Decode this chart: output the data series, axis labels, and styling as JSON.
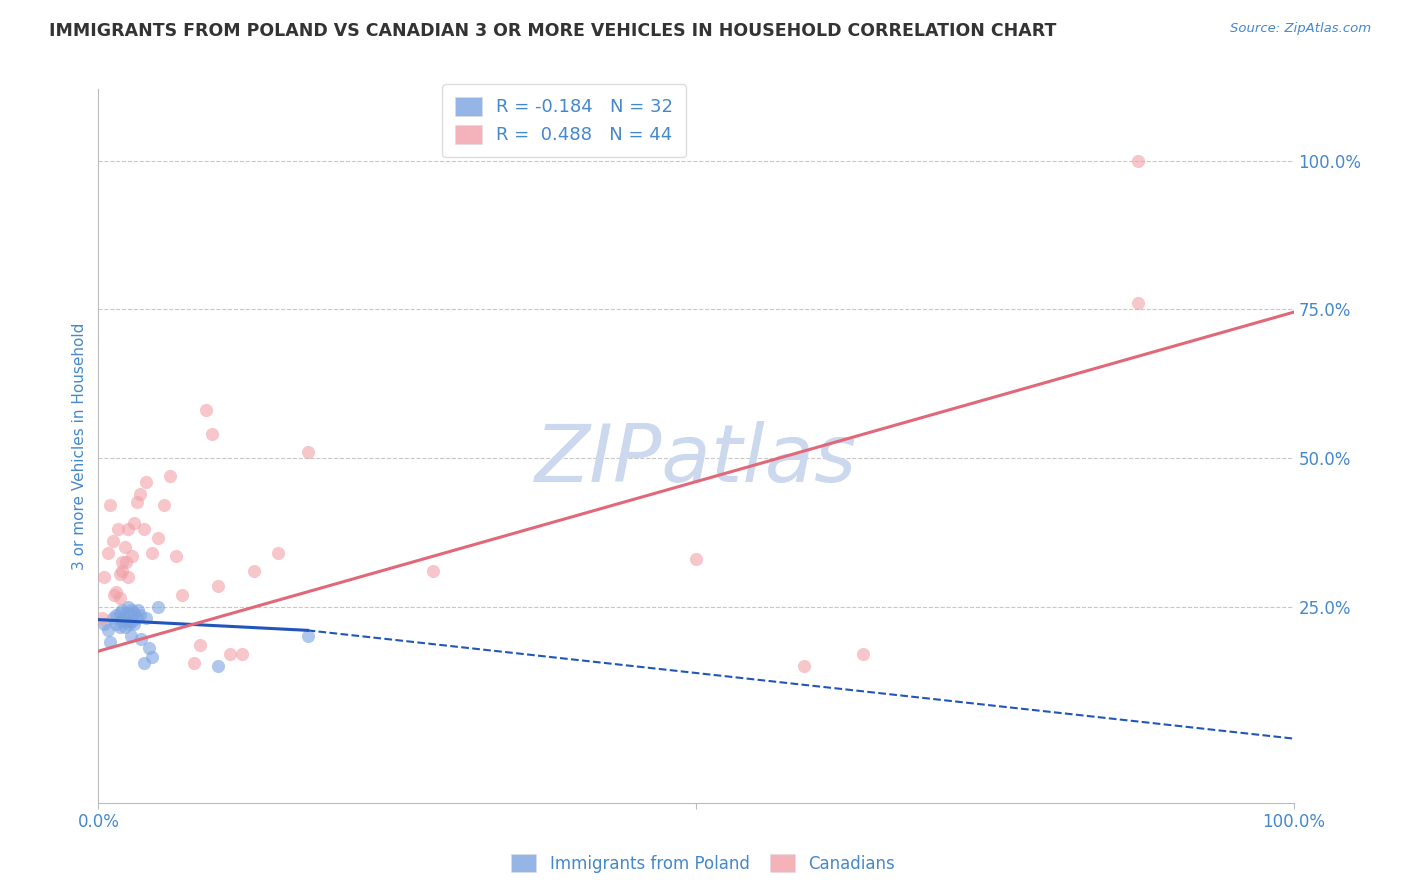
{
  "title": "IMMIGRANTS FROM POLAND VS CANADIAN 3 OR MORE VEHICLES IN HOUSEHOLD CORRELATION CHART",
  "source": "Source: ZipAtlas.com",
  "ylabel": "3 or more Vehicles in Household",
  "xlim": [
    0.0,
    1.0
  ],
  "ylim": [
    -0.08,
    1.12
  ],
  "y_tick_vals_right": [
    0.25,
    0.5,
    0.75,
    1.0
  ],
  "y_tick_labels_right": [
    "25.0%",
    "50.0%",
    "75.0%",
    "100.0%"
  ],
  "watermark": "ZIPatlas",
  "legend_r_blue": "-0.184",
  "legend_n_blue": "32",
  "legend_r_pink": "0.488",
  "legend_n_pink": "44",
  "blue_scatter_x": [
    0.005,
    0.008,
    0.01,
    0.012,
    0.015,
    0.015,
    0.018,
    0.018,
    0.02,
    0.02,
    0.022,
    0.022,
    0.024,
    0.024,
    0.025,
    0.026,
    0.027,
    0.028,
    0.028,
    0.03,
    0.03,
    0.032,
    0.033,
    0.035,
    0.036,
    0.038,
    0.04,
    0.042,
    0.045,
    0.05,
    0.1,
    0.175
  ],
  "blue_scatter_y": [
    0.22,
    0.21,
    0.19,
    0.23,
    0.235,
    0.22,
    0.215,
    0.24,
    0.225,
    0.245,
    0.23,
    0.215,
    0.24,
    0.225,
    0.25,
    0.22,
    0.2,
    0.245,
    0.225,
    0.24,
    0.22,
    0.23,
    0.245,
    0.235,
    0.195,
    0.155,
    0.23,
    0.18,
    0.165,
    0.25,
    0.15,
    0.2
  ],
  "pink_scatter_x": [
    0.003,
    0.005,
    0.008,
    0.01,
    0.012,
    0.013,
    0.015,
    0.016,
    0.018,
    0.018,
    0.02,
    0.02,
    0.022,
    0.023,
    0.025,
    0.025,
    0.028,
    0.03,
    0.032,
    0.035,
    0.038,
    0.04,
    0.045,
    0.05,
    0.055,
    0.06,
    0.065,
    0.07,
    0.08,
    0.085,
    0.09,
    0.095,
    0.1,
    0.11,
    0.12,
    0.13,
    0.15,
    0.175,
    0.28,
    0.5,
    0.59,
    0.64,
    0.87,
    0.87
  ],
  "pink_scatter_y": [
    0.23,
    0.3,
    0.34,
    0.42,
    0.36,
    0.27,
    0.275,
    0.38,
    0.305,
    0.265,
    0.325,
    0.31,
    0.35,
    0.325,
    0.3,
    0.38,
    0.335,
    0.39,
    0.425,
    0.44,
    0.38,
    0.46,
    0.34,
    0.365,
    0.42,
    0.47,
    0.335,
    0.27,
    0.155,
    0.185,
    0.58,
    0.54,
    0.285,
    0.17,
    0.17,
    0.31,
    0.34,
    0.51,
    0.31,
    0.33,
    0.15,
    0.17,
    0.76,
    1.0
  ],
  "blue_line_x0": 0.0,
  "blue_line_x1": 0.175,
  "blue_line_x_ext": 1.0,
  "blue_line_y0": 0.228,
  "blue_line_y1": 0.21,
  "blue_line_y_ext": 0.028,
  "pink_line_x0": 0.0,
  "pink_line_x1": 1.0,
  "pink_line_y0": 0.175,
  "pink_line_y1": 0.745,
  "bg_color": "#ffffff",
  "blue_color": "#7ba3e0",
  "pink_color": "#f0a0a8",
  "blue_line_color": "#2255bb",
  "pink_line_color": "#e06878",
  "grid_color": "#c8c8c8",
  "axis_label_color": "#4488cc",
  "title_color": "#333333",
  "watermark_color": "#ccd8ee"
}
